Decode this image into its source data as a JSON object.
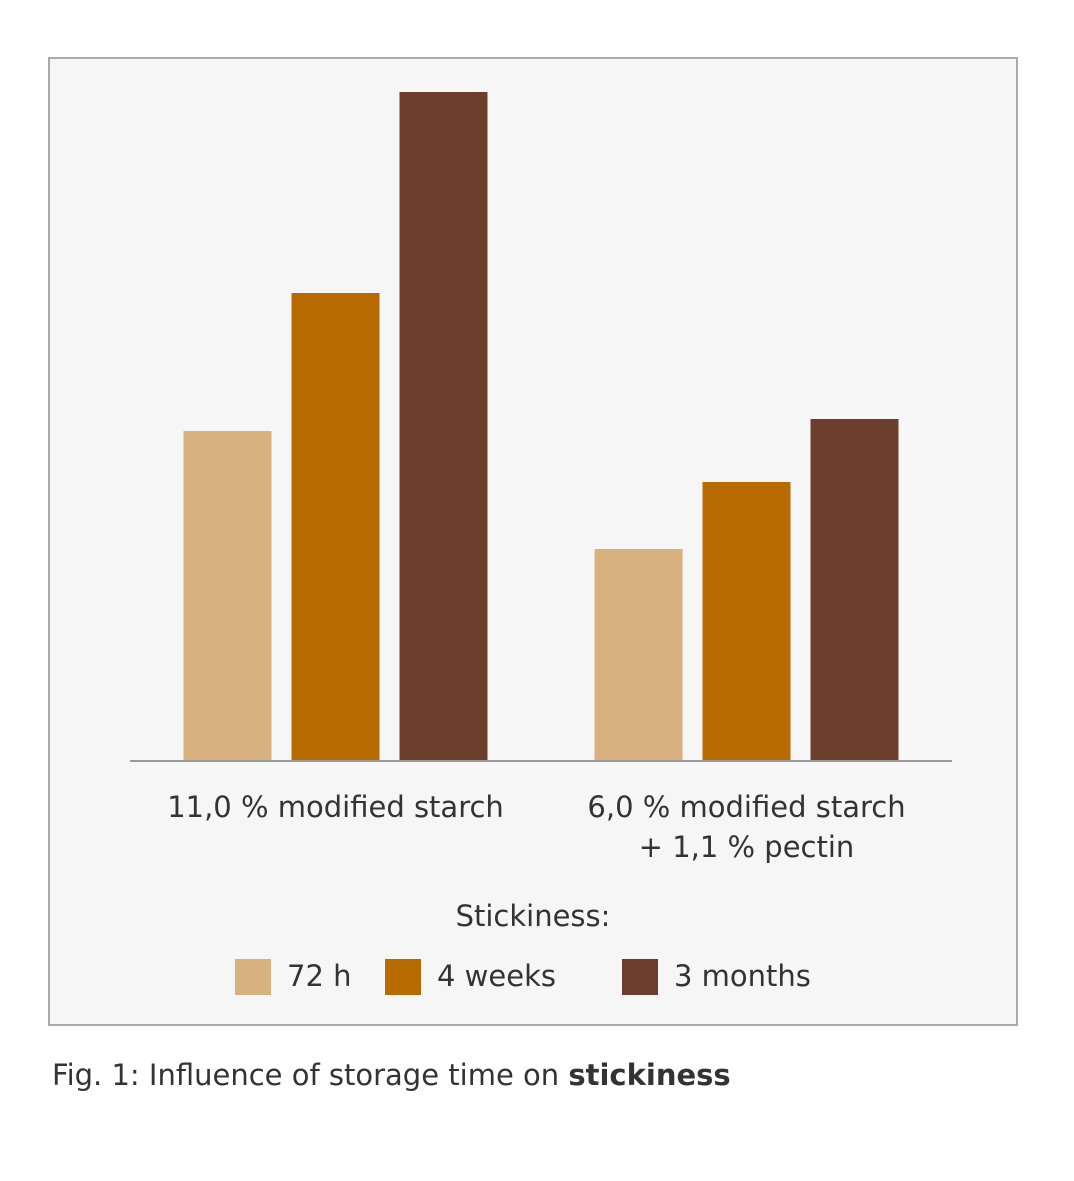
{
  "chart_data": {
    "type": "bar",
    "categories": [
      "11,0 % modified starch",
      "6,0 % modified starch\n+ 1,1 % pectin"
    ],
    "series": [
      {
        "name": "72 h",
        "color": "#d8b27e",
        "values": [
          330,
          212
        ]
      },
      {
        "name": "4 weeks",
        "color": "#b86b00",
        "values": [
          468,
          279
        ]
      },
      {
        "name": "3 months",
        "color": "#6b3e2e",
        "values": [
          669,
          342
        ]
      }
    ],
    "ylim": [
      0,
      700
    ],
    "legend_title": "Stickiness:",
    "legend": "bottom",
    "caption": "Fig. 1: Influence of storage time on",
    "caption_bold": "stickiness"
  }
}
